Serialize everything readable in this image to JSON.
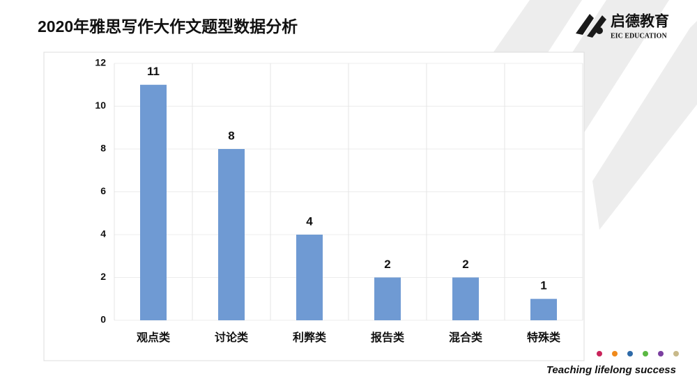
{
  "slide": {
    "title": "2020年雅思写作大作文题型数据分析",
    "logo": {
      "name": "启德教育",
      "subtitle": "EIC EDUCATION"
    },
    "tagline": "Teaching lifelong success"
  },
  "chart_data": {
    "type": "bar",
    "categories": [
      "观点类",
      "讨论类",
      "利弊类",
      "报告类",
      "混合类",
      "特殊类"
    ],
    "values": [
      11,
      8,
      4,
      2,
      2,
      1
    ],
    "color": "#6f9ad3",
    "ylim": [
      0,
      12
    ],
    "yticks": [
      0,
      2,
      4,
      6,
      8,
      10,
      12
    ],
    "grid": true
  }
}
